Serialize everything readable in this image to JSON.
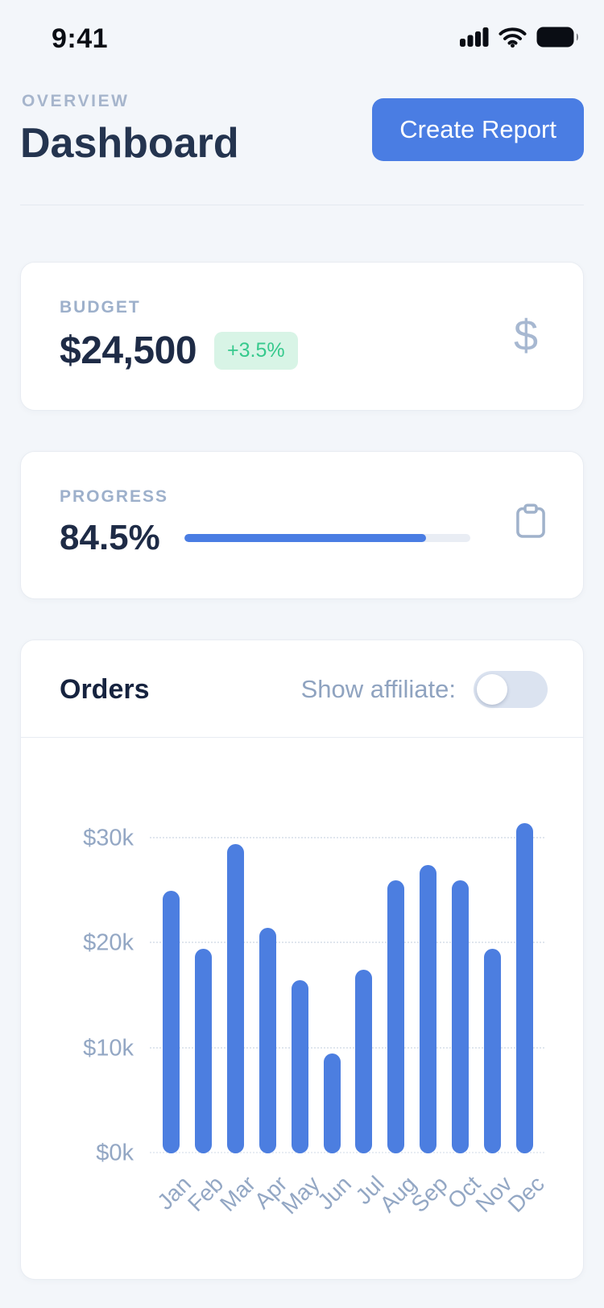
{
  "colors": {
    "accent_blue": "#4a7de3",
    "bar_blue": "#4c7ee0",
    "dark_navy": "#1e2b46",
    "muted_blue_gray": "#93a7c4",
    "green_text": "#36c98d",
    "green_bg": "#d8f4e6",
    "page_bg": "#f3f6fa",
    "toggle_track": "#dbe3f0",
    "progress_track": "#e9edf4"
  },
  "status_bar": {
    "time": "9:41",
    "icons": [
      "signal-icon",
      "wifi-icon",
      "battery-icon"
    ]
  },
  "header": {
    "overline": "OVERVIEW",
    "title": "Dashboard",
    "create_report_button": "Create Report"
  },
  "budget_card": {
    "label": "BUDGET",
    "value": "$24,500",
    "delta_badge": "+3.5%",
    "icon": "dollar-icon",
    "icon_glyph": "$"
  },
  "progress_card": {
    "label": "PROGRESS",
    "value": "84.5%",
    "percent": 84.5,
    "icon": "clipboard-icon"
  },
  "orders_card": {
    "title": "Orders",
    "toggle_label": "Show affiliate:",
    "toggle_state": "off"
  },
  "chart_data": {
    "type": "bar",
    "title": "Orders",
    "categories": [
      "Jan",
      "Feb",
      "Mar",
      "Apr",
      "May",
      "Jun",
      "Jul",
      "Aug",
      "Sep",
      "Oct",
      "Nov",
      "Dec"
    ],
    "values": [
      25000,
      19500,
      29500,
      21500,
      16500,
      9500,
      17500,
      26000,
      27500,
      26000,
      19500,
      31500
    ],
    "y_ticks": [
      {
        "label": "$30k",
        "value": 30000
      },
      {
        "label": "$20k",
        "value": 20000
      },
      {
        "label": "$10k",
        "value": 10000
      },
      {
        "label": "$0k",
        "value": 0
      }
    ],
    "ylim": [
      0,
      33000
    ],
    "xlabel": "",
    "ylabel": "",
    "grid": "dotted-horizontal",
    "legend": "none",
    "bar_color": "#4c7ee0"
  }
}
